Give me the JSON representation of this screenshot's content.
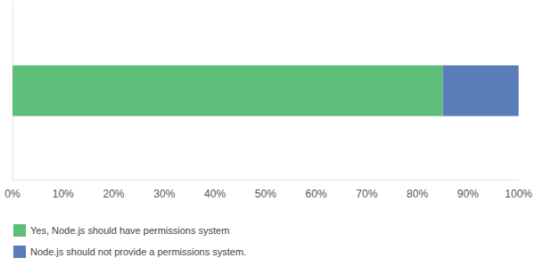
{
  "chart_data": {
    "type": "bar",
    "orientation": "horizontal",
    "stacked": true,
    "grid": false,
    "legend": "bottom-left",
    "categories": [
      null
    ],
    "series": [
      {
        "name": "Yes, Node.js should have permissions system",
        "color": "#5cbe79",
        "values": [
          85
        ]
      },
      {
        "name": "Node.js should not provide a permissions system.",
        "color": "#5a7dba",
        "values": [
          15
        ]
      }
    ],
    "xlim": [
      0,
      100
    ],
    "xticks": [
      {
        "value": 0,
        "label": "0%"
      },
      {
        "value": 10,
        "label": "10%"
      },
      {
        "value": 20,
        "label": "20%"
      },
      {
        "value": 30,
        "label": "30%"
      },
      {
        "value": 40,
        "label": "40%"
      },
      {
        "value": 50,
        "label": "50%"
      },
      {
        "value": 60,
        "label": "60%"
      },
      {
        "value": 70,
        "label": "70%"
      },
      {
        "value": 80,
        "label": "80%"
      },
      {
        "value": 90,
        "label": "90%"
      },
      {
        "value": 100,
        "label": "100%"
      }
    ]
  }
}
